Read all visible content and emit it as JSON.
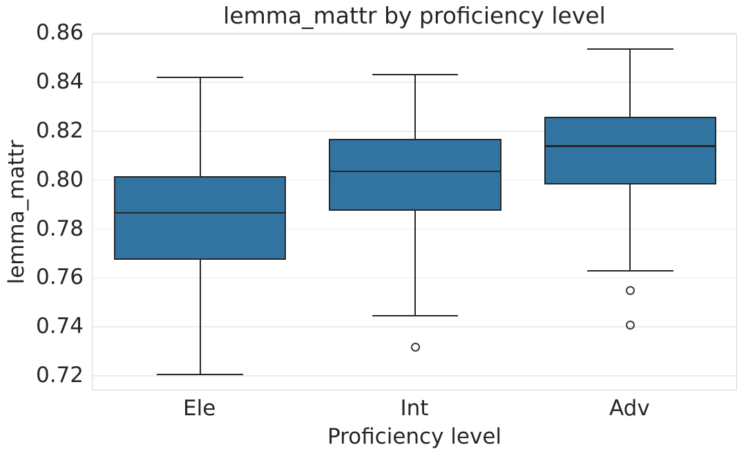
{
  "chart_data": {
    "type": "boxplot",
    "title": "lemma_mattr by proficiency level",
    "xlabel": "Proficiency level",
    "ylabel": "lemma_mattr",
    "categories": [
      "Ele",
      "Int",
      "Adv"
    ],
    "ylim": [
      0.7138,
      0.8595
    ],
    "yticks": [
      0.72,
      0.74,
      0.76,
      0.78,
      0.8,
      0.82,
      0.84,
      0.86
    ],
    "ytick_labels": [
      "0.72",
      "0.74",
      "0.76",
      "0.78",
      "0.80",
      "0.82",
      "0.84",
      "0.86"
    ],
    "grid": "horizontal-major",
    "legend": "none",
    "boxes": [
      {
        "category": "Ele",
        "whisker_low": 0.7205,
        "q1": 0.7675,
        "median": 0.7866,
        "q3": 0.8016,
        "whisker_high": 0.8421,
        "outliers": []
      },
      {
        "category": "Int",
        "whisker_low": 0.7446,
        "q1": 0.7876,
        "median": 0.8036,
        "q3": 0.817,
        "whisker_high": 0.8432,
        "outliers": [
          0.7316
        ]
      },
      {
        "category": "Adv",
        "whisker_low": 0.763,
        "q1": 0.7983,
        "median": 0.8139,
        "q3": 0.8258,
        "whisker_high": 0.8536,
        "outliers": [
          0.7549,
          0.7408
        ]
      }
    ],
    "outlier_marker": "open-circle",
    "colors": {
      "box_fill": "#3274A1",
      "box_edge": "#262626",
      "whisker": "#262626",
      "median": "#262626",
      "outlier_edge": "#3a3a3a",
      "grid": "#ececec",
      "spine": "#d4d4d4",
      "text": "#262626",
      "background": "#ffffff"
    }
  }
}
